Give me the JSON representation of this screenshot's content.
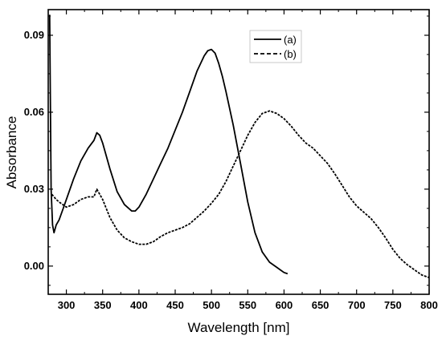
{
  "chart_data": {
    "type": "line",
    "title": "",
    "xlabel": "Wavelength [nm]",
    "ylabel": "Absorbance",
    "xlim": [
      275,
      800
    ],
    "ylim": [
      -0.011,
      0.1
    ],
    "x_ticks": [
      300,
      350,
      400,
      450,
      500,
      550,
      600,
      650,
      700,
      750,
      800
    ],
    "x_tick_labels": [
      "300",
      "350",
      "400",
      "450",
      "500",
      "550",
      "600",
      "650",
      "700",
      "750",
      "800"
    ],
    "y_ticks": [
      0.0,
      0.03,
      0.06,
      0.09
    ],
    "y_tick_labels": [
      "0.00",
      "0.03",
      "0.06",
      "0.09"
    ],
    "grid": false,
    "legend_position": "top-center",
    "series": [
      {
        "name": "(a)",
        "style": "solid",
        "color": "#000000",
        "x": [
          277,
          279,
          281,
          283,
          286,
          290,
          295,
          300,
          310,
          320,
          330,
          338,
          342,
          346,
          350,
          360,
          370,
          380,
          390,
          395,
          400,
          410,
          420,
          430,
          440,
          450,
          460,
          470,
          480,
          490,
          495,
          500,
          505,
          510,
          515,
          520,
          530,
          540,
          550,
          560,
          570,
          580,
          590,
          595,
          600,
          605
        ],
        "y": [
          0.098,
          0.03,
          0.016,
          0.013,
          0.016,
          0.018,
          0.022,
          0.026,
          0.034,
          0.041,
          0.046,
          0.049,
          0.052,
          0.051,
          0.048,
          0.038,
          0.029,
          0.024,
          0.0215,
          0.0215,
          0.023,
          0.028,
          0.034,
          0.04,
          0.046,
          0.053,
          0.06,
          0.068,
          0.076,
          0.082,
          0.084,
          0.0845,
          0.083,
          0.079,
          0.074,
          0.068,
          0.055,
          0.04,
          0.025,
          0.013,
          0.0055,
          0.0015,
          -0.0005,
          -0.0015,
          -0.0025,
          -0.003
        ]
      },
      {
        "name": "(b)",
        "style": "dashed",
        "color": "#000000",
        "x": [
          280,
          283,
          286,
          290,
          295,
          300,
          310,
          320,
          330,
          338,
          342,
          346,
          350,
          360,
          370,
          380,
          390,
          400,
          410,
          420,
          430,
          440,
          450,
          460,
          470,
          480,
          490,
          500,
          510,
          520,
          530,
          540,
          550,
          560,
          570,
          580,
          590,
          600,
          610,
          620,
          630,
          640,
          650,
          660,
          670,
          680,
          690,
          700,
          710,
          720,
          730,
          740,
          750,
          760,
          770,
          780,
          790,
          800
        ],
        "y": [
          0.028,
          0.027,
          0.026,
          0.025,
          0.024,
          0.023,
          0.024,
          0.026,
          0.027,
          0.027,
          0.03,
          0.028,
          0.026,
          0.019,
          0.014,
          0.011,
          0.0095,
          0.0085,
          0.0085,
          0.0095,
          0.0115,
          0.013,
          0.014,
          0.015,
          0.0165,
          0.019,
          0.0215,
          0.0245,
          0.028,
          0.033,
          0.039,
          0.045,
          0.051,
          0.056,
          0.0595,
          0.0605,
          0.0595,
          0.0575,
          0.0545,
          0.051,
          0.048,
          0.046,
          0.043,
          0.04,
          0.036,
          0.0315,
          0.027,
          0.0235,
          0.021,
          0.0185,
          0.015,
          0.011,
          0.0065,
          0.003,
          0.0005,
          -0.0015,
          -0.0035,
          -0.0045
        ]
      }
    ]
  }
}
